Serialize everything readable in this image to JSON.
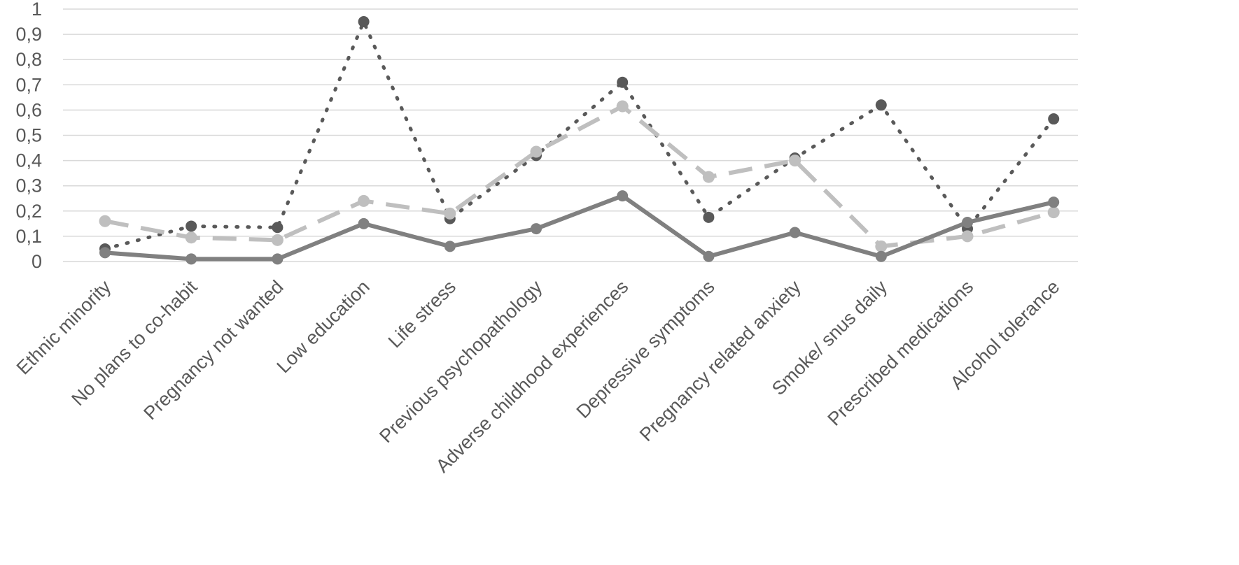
{
  "chart_data": {
    "type": "line",
    "title": "",
    "xlabel": "",
    "ylabel": "",
    "categories": [
      "Ethnic minority",
      "No plans to co-habit",
      "Pregnancy not wanted",
      "Low education",
      "Life stress",
      "Previous psychopathology",
      "Adverse childhood experiences",
      "Depressive symptoms",
      "Pregnancy related anxiety",
      "Smoke/ snus daily",
      "Prescribed medications",
      "Alcohol tolerance"
    ],
    "ylim": [
      0,
      1
    ],
    "yticks": [
      "0",
      "0,1",
      "0,2",
      "0,3",
      "0,4",
      "0,5",
      "0,6",
      "0,7",
      "0,8",
      "0,9",
      "1"
    ],
    "grid": true,
    "legend": "none",
    "series": [
      {
        "style": "dotted",
        "color": "#595959",
        "values": [
          0.05,
          0.14,
          0.135,
          0.95,
          0.17,
          0.42,
          0.71,
          0.175,
          0.41,
          0.62,
          0.13,
          0.565
        ]
      },
      {
        "style": "dashed",
        "color": "#bfbfbf",
        "values": [
          0.16,
          0.095,
          0.085,
          0.24,
          0.19,
          0.435,
          0.615,
          0.335,
          0.4,
          0.06,
          0.1,
          0.195
        ]
      },
      {
        "style": "solid",
        "color": "#808080",
        "values": [
          0.035,
          0.01,
          0.01,
          0.15,
          0.06,
          0.13,
          0.26,
          0.02,
          0.115,
          0.02,
          0.155,
          0.235
        ]
      }
    ]
  }
}
